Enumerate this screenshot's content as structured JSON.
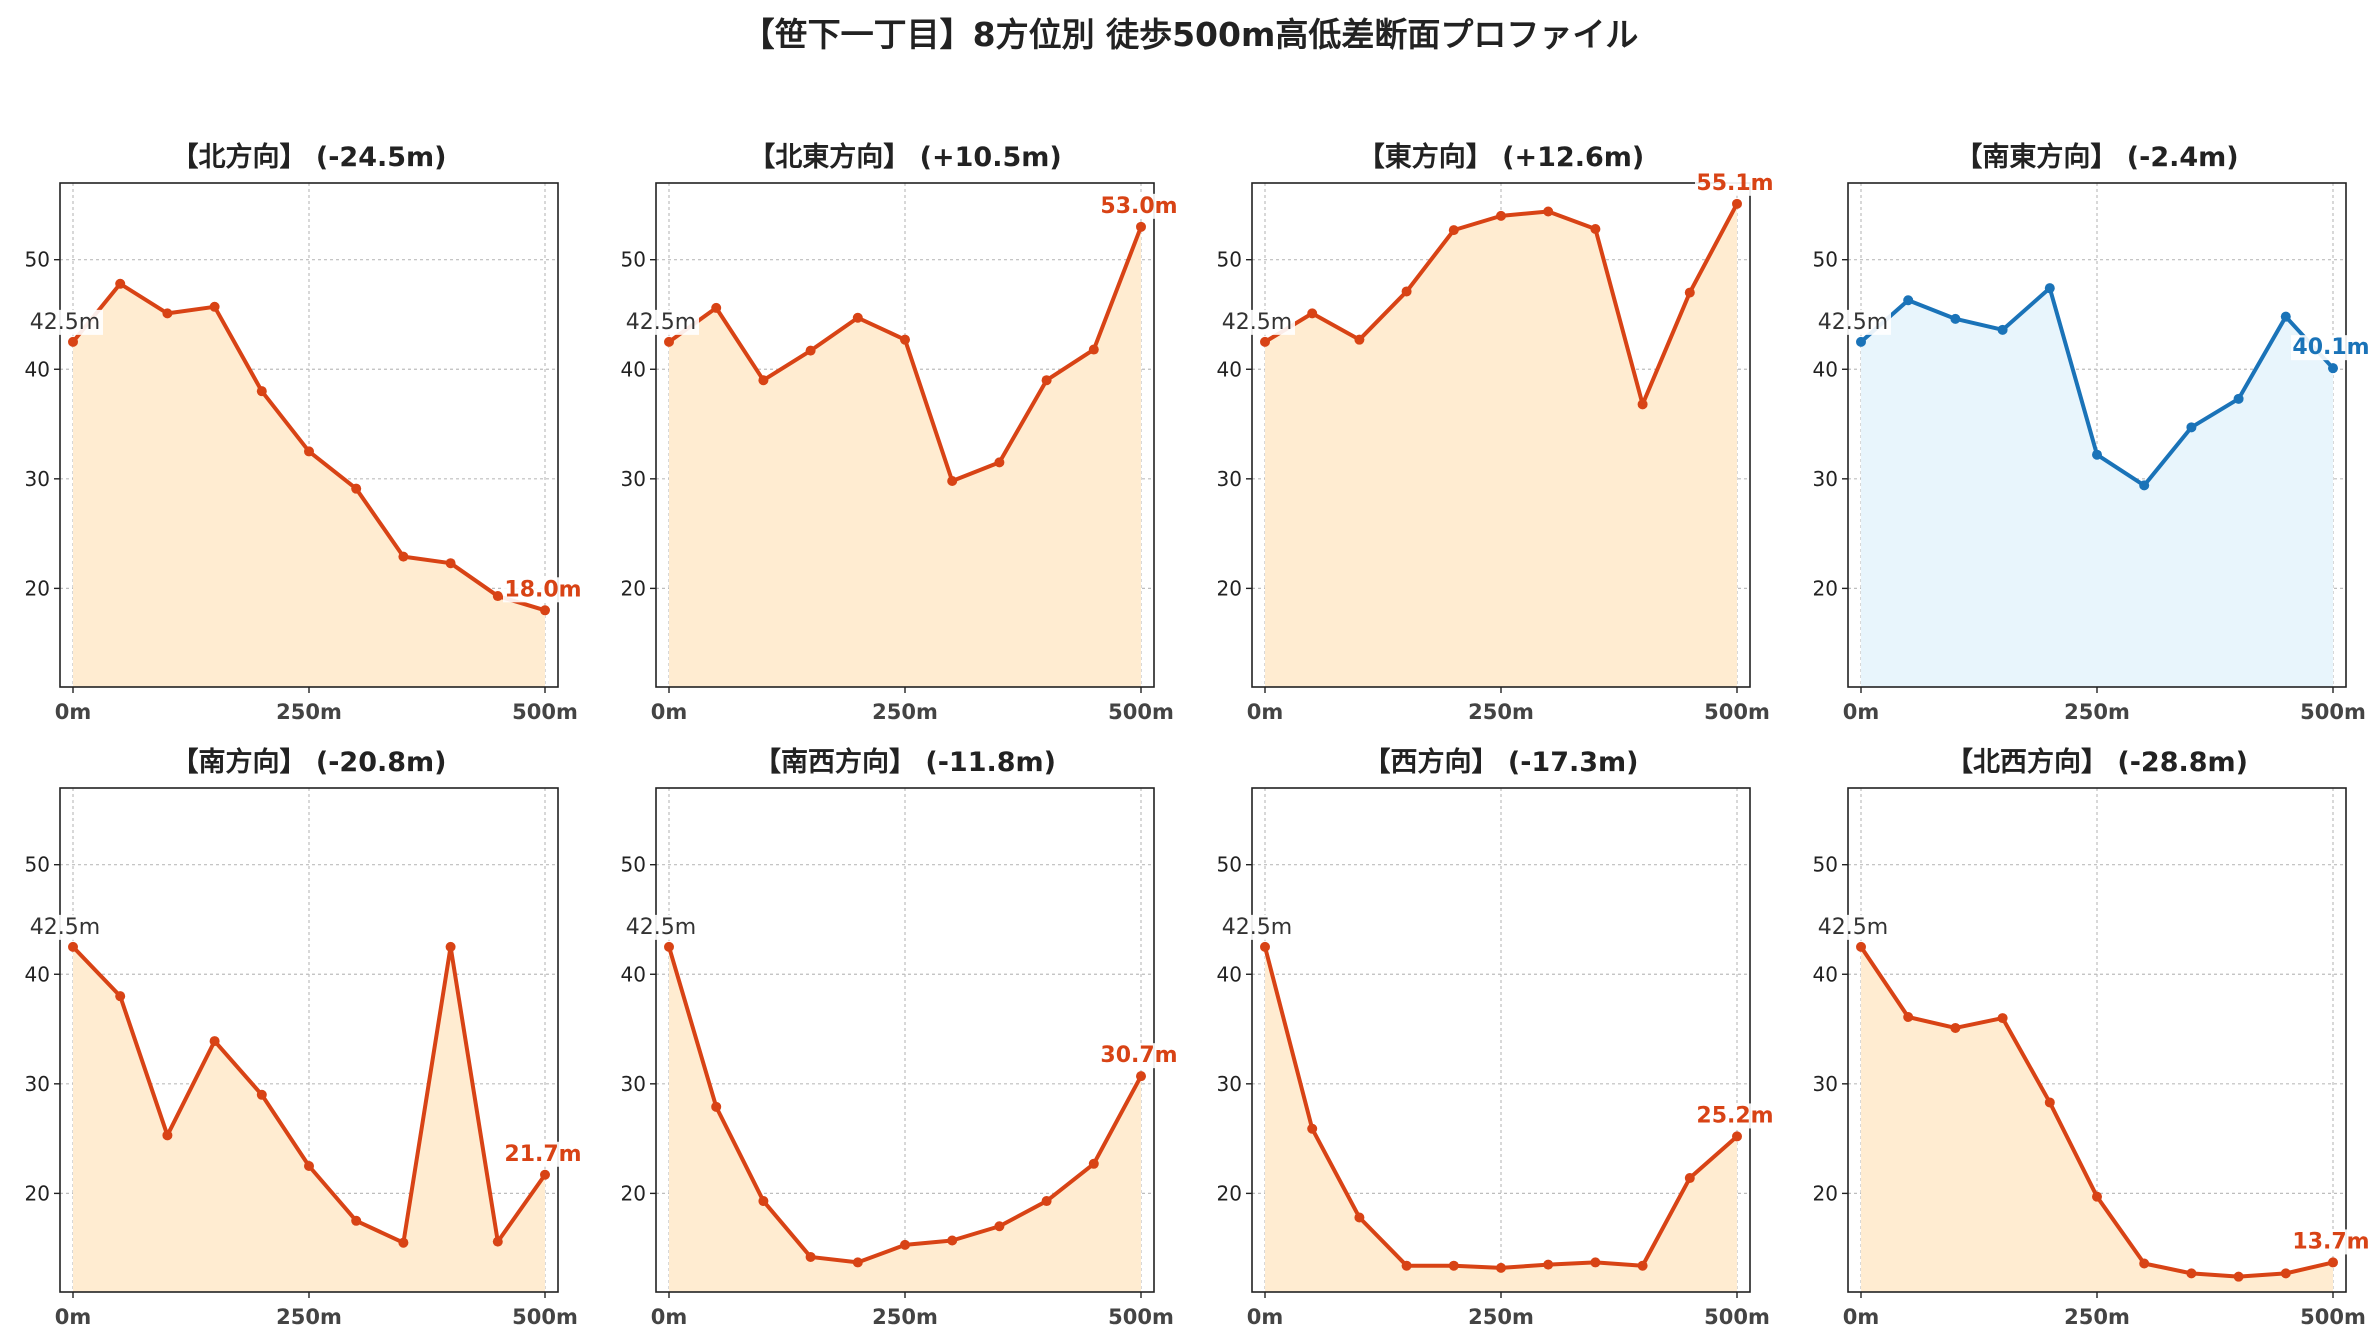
{
  "title": "【笹下一丁目】8方位別 徒歩500m高低差断面プロファイル",
  "colors": {
    "down_line": "#d84315",
    "down_fill": "#ffecd1",
    "flat_line": "#1a73b8",
    "flat_fill": "#e8f5fc"
  },
  "chart_data": [
    {
      "type": "area",
      "title": "【北方向】 (-24.5m)",
      "x": [
        0,
        50,
        100,
        150,
        200,
        250,
        300,
        350,
        400,
        450,
        500
      ],
      "values": [
        42.5,
        47.8,
        45.1,
        45.7,
        38.0,
        32.5,
        29.1,
        22.9,
        22.3,
        19.3,
        18.0
      ],
      "start_label": "42.5m",
      "end_label": "18.0m",
      "style": "warm",
      "xticks": [
        "0m",
        "250m",
        "500m"
      ],
      "yticks": [
        20,
        30,
        40,
        50
      ],
      "ylim": [
        11,
        57
      ]
    },
    {
      "type": "area",
      "title": "【北東方向】 (+10.5m)",
      "x": [
        0,
        50,
        100,
        150,
        200,
        250,
        300,
        350,
        400,
        450,
        500
      ],
      "values": [
        42.5,
        45.6,
        39.0,
        41.7,
        44.7,
        42.7,
        29.8,
        31.5,
        39.0,
        41.8,
        53.0
      ],
      "start_label": "42.5m",
      "end_label": "53.0m",
      "style": "warm",
      "xticks": [
        "0m",
        "250m",
        "500m"
      ],
      "yticks": [
        20,
        30,
        40,
        50
      ],
      "ylim": [
        11,
        57
      ]
    },
    {
      "type": "area",
      "title": "【東方向】 (+12.6m)",
      "x": [
        0,
        50,
        100,
        150,
        200,
        250,
        300,
        350,
        400,
        450,
        500
      ],
      "values": [
        42.5,
        45.1,
        42.7,
        47.1,
        52.7,
        54.0,
        54.4,
        52.8,
        36.8,
        47.0,
        55.1
      ],
      "start_label": "42.5m",
      "end_label": "55.1m",
      "style": "warm",
      "xticks": [
        "0m",
        "250m",
        "500m"
      ],
      "yticks": [
        20,
        30,
        40,
        50
      ],
      "ylim": [
        11,
        57
      ]
    },
    {
      "type": "area",
      "title": "【南東方向】 (-2.4m)",
      "x": [
        0,
        50,
        100,
        150,
        200,
        250,
        300,
        350,
        400,
        450,
        500
      ],
      "values": [
        42.5,
        46.3,
        44.6,
        43.6,
        47.4,
        32.2,
        29.4,
        34.7,
        37.3,
        44.8,
        40.1
      ],
      "start_label": "42.5m",
      "end_label": "40.1m",
      "style": "cool",
      "xticks": [
        "0m",
        "250m",
        "500m"
      ],
      "yticks": [
        20,
        30,
        40,
        50
      ],
      "ylim": [
        11,
        57
      ]
    },
    {
      "type": "area",
      "title": "【南方向】 (-20.8m)",
      "x": [
        0,
        50,
        100,
        150,
        200,
        250,
        300,
        350,
        400,
        450,
        500
      ],
      "values": [
        42.5,
        38.0,
        25.3,
        33.9,
        29.0,
        22.5,
        17.5,
        15.5,
        42.5,
        15.6,
        21.7
      ],
      "start_label": "42.5m",
      "end_label": "21.7m",
      "style": "warm",
      "xticks": [
        "0m",
        "250m",
        "500m"
      ],
      "yticks": [
        20,
        30,
        40,
        50
      ],
      "ylim": [
        11,
        57
      ]
    },
    {
      "type": "area",
      "title": "【南西方向】 (-11.8m)",
      "x": [
        0,
        50,
        100,
        150,
        200,
        250,
        300,
        350,
        400,
        450,
        500
      ],
      "values": [
        42.5,
        27.9,
        19.3,
        14.2,
        13.7,
        15.3,
        15.7,
        17.0,
        19.3,
        22.7,
        30.7
      ],
      "start_label": "42.5m",
      "end_label": "30.7m",
      "style": "warm",
      "xticks": [
        "0m",
        "250m",
        "500m"
      ],
      "yticks": [
        20,
        30,
        40,
        50
      ],
      "ylim": [
        11,
        57
      ]
    },
    {
      "type": "area",
      "title": "【西方向】 (-17.3m)",
      "x": [
        0,
        50,
        100,
        150,
        200,
        250,
        300,
        350,
        400,
        450,
        500
      ],
      "values": [
        42.5,
        25.9,
        17.8,
        13.4,
        13.4,
        13.2,
        13.5,
        13.7,
        13.4,
        21.4,
        25.2
      ],
      "start_label": "42.5m",
      "end_label": "25.2m",
      "style": "warm",
      "xticks": [
        "0m",
        "250m",
        "500m"
      ],
      "yticks": [
        20,
        30,
        40,
        50
      ],
      "ylim": [
        11,
        57
      ]
    },
    {
      "type": "area",
      "title": "【北西方向】 (-28.8m)",
      "x": [
        0,
        50,
        100,
        150,
        200,
        250,
        300,
        350,
        400,
        450,
        500
      ],
      "values": [
        42.5,
        36.1,
        35.1,
        36.0,
        28.3,
        19.7,
        13.6,
        12.7,
        12.4,
        12.7,
        13.7
      ],
      "start_label": "42.5m",
      "end_label": "13.7m",
      "style": "warm",
      "xticks": [
        "0m",
        "250m",
        "500m"
      ],
      "yticks": [
        20,
        30,
        40,
        50
      ],
      "ylim": [
        11,
        57
      ]
    }
  ]
}
